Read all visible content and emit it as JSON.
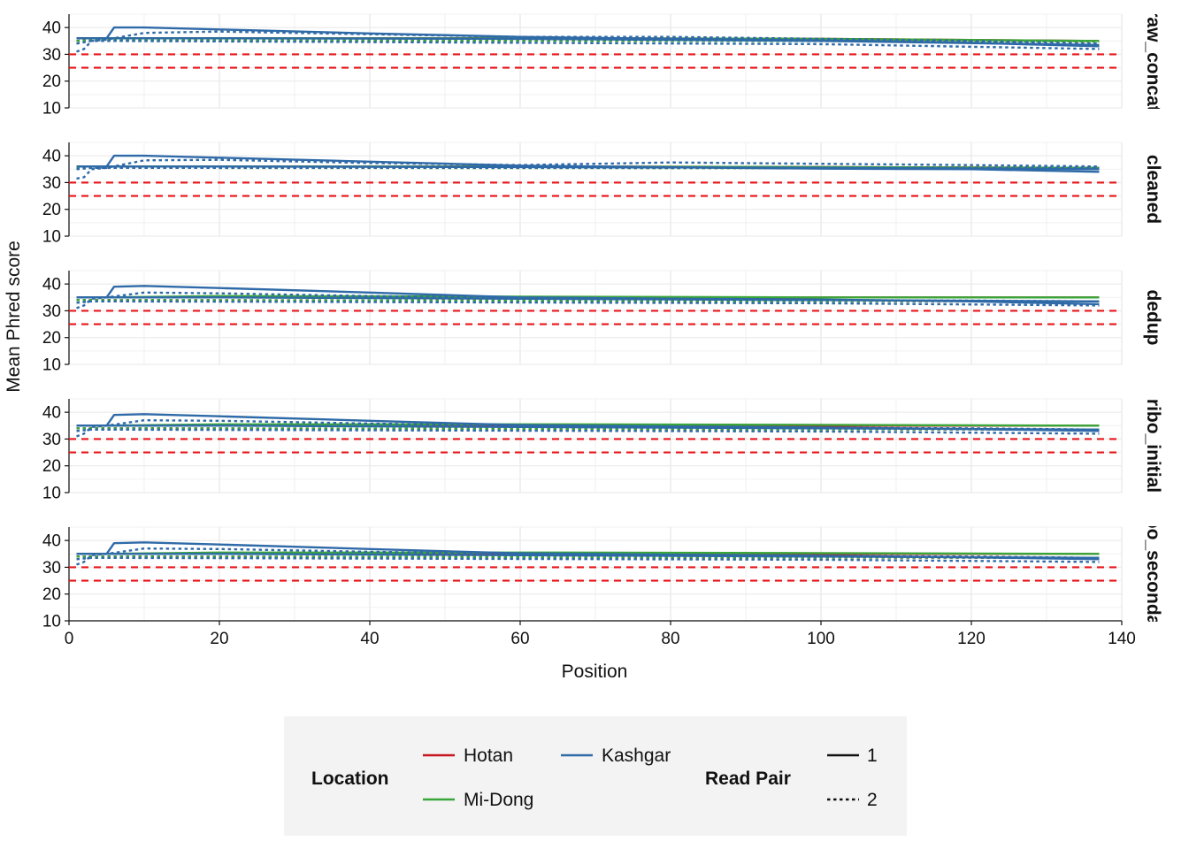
{
  "chart_data": {
    "type": "line",
    "xlabel": "Position",
    "ylabel": "Mean Phred score",
    "xlim": [
      0,
      140
    ],
    "ylim": [
      10,
      45
    ],
    "x_ticks": [
      0,
      20,
      40,
      60,
      80,
      100,
      120,
      140
    ],
    "y_ticks": [
      10,
      20,
      30,
      40
    ],
    "grid": true,
    "reference_lines": [
      {
        "y": 30,
        "color": "#e8161b",
        "style": "dashed"
      },
      {
        "y": 25,
        "color": "#e8161b",
        "style": "dashed"
      }
    ],
    "location_colors": {
      "Hotan": "#c8141e",
      "Mi-Dong": "#3aa639",
      "Kashgar": "#2f6aa8"
    },
    "panels": [
      {
        "label": "raw_concat",
        "series": [
          {
            "location": "Hotan",
            "read_pair": "1",
            "x": [
              1,
              5,
              20,
              60,
              100,
              137
            ],
            "y": [
              36,
              36,
              36,
              36,
              35.8,
              35
            ]
          },
          {
            "location": "Hotan",
            "read_pair": "2",
            "x": [
              1,
              3,
              6,
              137
            ],
            "y": [
              35,
              35.5,
              35.5,
              35
            ]
          },
          {
            "location": "Mi-Dong",
            "read_pair": "1",
            "x": [
              1,
              5,
              20,
              60,
              100,
              137
            ],
            "y": [
              36,
              36,
              36,
              36,
              35.8,
              35
            ]
          },
          {
            "location": "Mi-Dong",
            "read_pair": "2",
            "x": [
              1,
              3,
              6,
              137
            ],
            "y": [
              35,
              35.3,
              35.3,
              34.8
            ]
          },
          {
            "location": "Kashgar",
            "read_pair": "1",
            "x": [
              1,
              5,
              6,
              10,
              20,
              40,
              60,
              80,
              100,
              120,
              137
            ],
            "y": [
              36,
              36,
              40,
              40,
              39.3,
              37.8,
              36.5,
              35.8,
              35.2,
              34.3,
              33
            ]
          },
          {
            "location": "Kashgar",
            "read_pair": "2",
            "x": [
              1,
              2,
              3,
              5,
              10,
              20,
              40,
              60,
              80,
              100,
              120,
              137
            ],
            "y": [
              31,
              32,
              35,
              35.5,
              38,
              38.5,
              37.5,
              36.5,
              36.5,
              35.8,
              35,
              34
            ]
          },
          {
            "location": "Kashgar",
            "read_pair": "1",
            "x": [
              1,
              5,
              20,
              60,
              100,
              137
            ],
            "y": [
              36,
              36,
              36,
              35.8,
              35,
              33.5
            ]
          },
          {
            "location": "Kashgar",
            "read_pair": "2",
            "x": [
              1,
              3,
              6,
              100,
              137
            ],
            "y": [
              34,
              35,
              35,
              33.8,
              32
            ]
          }
        ]
      },
      {
        "label": "cleaned",
        "series": [
          {
            "location": "Hotan",
            "read_pair": "1",
            "x": [
              1,
              5,
              20,
              60,
              100,
              137
            ],
            "y": [
              36,
              36,
              36,
              36,
              35.8,
              35.5
            ]
          },
          {
            "location": "Hotan",
            "read_pair": "2",
            "x": [
              1,
              3,
              6,
              137
            ],
            "y": [
              35.5,
              35.5,
              35.5,
              35.5
            ]
          },
          {
            "location": "Mi-Dong",
            "read_pair": "1",
            "x": [
              1,
              5,
              20,
              60,
              100,
              137
            ],
            "y": [
              36,
              36,
              36,
              36,
              35.8,
              35.5
            ]
          },
          {
            "location": "Mi-Dong",
            "read_pair": "2",
            "x": [
              1,
              3,
              6,
              137
            ],
            "y": [
              35.5,
              35.5,
              35.5,
              35.3
            ]
          },
          {
            "location": "Kashgar",
            "read_pair": "1",
            "x": [
              1,
              5,
              6,
              10,
              20,
              40,
              60,
              80,
              100,
              120,
              137
            ],
            "y": [
              36,
              36,
              40,
              40,
              39.3,
              37.8,
              36.3,
              35.7,
              35.2,
              35,
              34
            ]
          },
          {
            "location": "Kashgar",
            "read_pair": "2",
            "x": [
              1,
              2,
              3,
              5,
              10,
              20,
              40,
              60,
              80,
              100,
              120,
              137
            ],
            "y": [
              31.5,
              32,
              35,
              35.5,
              38.3,
              38.5,
              37.3,
              36.5,
              37.5,
              37,
              36.5,
              36
            ]
          },
          {
            "location": "Kashgar",
            "read_pair": "1",
            "x": [
              1,
              5,
              20,
              60,
              100,
              137
            ],
            "y": [
              36,
              36,
              36,
              35.8,
              35.5,
              35
            ]
          },
          {
            "location": "Kashgar",
            "read_pair": "2",
            "x": [
              1,
              3,
              6,
              100,
              137
            ],
            "y": [
              35,
              35.5,
              35.5,
              35.5,
              35.5
            ]
          }
        ]
      },
      {
        "label": "dedup",
        "series": [
          {
            "location": "Hotan",
            "read_pair": "1",
            "x": [
              1,
              5,
              20,
              60,
              100,
              137
            ],
            "y": [
              35,
              35,
              35,
              35,
              35,
              35
            ]
          },
          {
            "location": "Hotan",
            "read_pair": "2",
            "x": [
              1,
              3,
              6,
              137
            ],
            "y": [
              34,
              34,
              34,
              33.5
            ]
          },
          {
            "location": "Mi-Dong",
            "read_pair": "1",
            "x": [
              1,
              5,
              20,
              60,
              100,
              137
            ],
            "y": [
              35,
              35,
              35.5,
              35.3,
              35,
              35
            ]
          },
          {
            "location": "Mi-Dong",
            "read_pair": "2",
            "x": [
              1,
              3,
              6,
              137
            ],
            "y": [
              34,
              34,
              34,
              33.5
            ]
          },
          {
            "location": "Kashgar",
            "read_pair": "1",
            "x": [
              1,
              5,
              6,
              10,
              20,
              40,
              60,
              80,
              100,
              120,
              137
            ],
            "y": [
              35,
              35,
              39,
              39.3,
              38.5,
              36.8,
              35,
              34.5,
              34.2,
              33.5,
              32.5
            ]
          },
          {
            "location": "Kashgar",
            "read_pair": "2",
            "x": [
              1,
              2,
              3,
              5,
              10,
              20,
              40,
              60,
              80,
              100,
              120,
              137
            ],
            "y": [
              31,
              32,
              34.5,
              35,
              36.8,
              36.5,
              35.5,
              34.8,
              34.3,
              34,
              33.8,
              33.5
            ]
          },
          {
            "location": "Kashgar",
            "read_pair": "1",
            "x": [
              1,
              5,
              20,
              60,
              100,
              137
            ],
            "y": [
              35,
              35,
              35,
              34.5,
              34,
              33.5
            ]
          },
          {
            "location": "Kashgar",
            "read_pair": "2",
            "x": [
              1,
              3,
              6,
              100,
              137
            ],
            "y": [
              33,
              33.5,
              33.5,
              32.8,
              32
            ]
          }
        ]
      },
      {
        "label": "ribo_initial",
        "series": [
          {
            "location": "Hotan",
            "read_pair": "1",
            "x": [
              1,
              5,
              20,
              60,
              100,
              137
            ],
            "y": [
              35,
              35,
              35,
              35,
              35,
              35
            ]
          },
          {
            "location": "Hotan",
            "read_pair": "2",
            "x": [
              1,
              3,
              6,
              137
            ],
            "y": [
              34,
              34,
              34,
              33.5
            ]
          },
          {
            "location": "Mi-Dong",
            "read_pair": "1",
            "x": [
              1,
              5,
              20,
              60,
              100,
              137
            ],
            "y": [
              35,
              35,
              35.5,
              35.5,
              35.3,
              35
            ]
          },
          {
            "location": "Mi-Dong",
            "read_pair": "2",
            "x": [
              1,
              3,
              6,
              137
            ],
            "y": [
              34,
              34,
              34,
              33.5
            ]
          },
          {
            "location": "Kashgar",
            "read_pair": "1",
            "x": [
              1,
              5,
              6,
              10,
              20,
              40,
              60,
              80,
              100,
              120,
              137
            ],
            "y": [
              35,
              35,
              39,
              39.3,
              38.5,
              36.8,
              35.2,
              34.7,
              34.3,
              33.7,
              33
            ]
          },
          {
            "location": "Kashgar",
            "read_pair": "2",
            "x": [
              1,
              2,
              3,
              5,
              10,
              20,
              40,
              60,
              80,
              100,
              120,
              137
            ],
            "y": [
              31,
              32,
              34.5,
              35,
              37,
              36.8,
              35.8,
              35,
              34.5,
              34.2,
              34,
              33.5
            ]
          },
          {
            "location": "Kashgar",
            "read_pair": "1",
            "x": [
              1,
              5,
              20,
              60,
              100,
              137
            ],
            "y": [
              35,
              35,
              35,
              34.5,
              34,
              33.5
            ]
          },
          {
            "location": "Kashgar",
            "read_pair": "2",
            "x": [
              1,
              3,
              6,
              100,
              137
            ],
            "y": [
              33,
              33.5,
              33.5,
              32.8,
              32
            ]
          }
        ]
      },
      {
        "label": "ribo_secondary",
        "series": [
          {
            "location": "Hotan",
            "read_pair": "1",
            "x": [
              1,
              5,
              20,
              60,
              100,
              137
            ],
            "y": [
              35,
              35,
              35,
              35,
              35,
              35
            ]
          },
          {
            "location": "Hotan",
            "read_pair": "2",
            "x": [
              1,
              3,
              6,
              137
            ],
            "y": [
              34,
              34,
              34,
              33.5
            ]
          },
          {
            "location": "Mi-Dong",
            "read_pair": "1",
            "x": [
              1,
              5,
              20,
              60,
              100,
              137
            ],
            "y": [
              35,
              35,
              35.5,
              35.5,
              35.3,
              35
            ]
          },
          {
            "location": "Mi-Dong",
            "read_pair": "2",
            "x": [
              1,
              3,
              6,
              137
            ],
            "y": [
              34,
              34,
              34,
              33.5
            ]
          },
          {
            "location": "Kashgar",
            "read_pair": "1",
            "x": [
              1,
              5,
              6,
              10,
              20,
              40,
              60,
              80,
              100,
              120,
              137
            ],
            "y": [
              35,
              35,
              39,
              39.3,
              38.5,
              36.8,
              35.2,
              34.7,
              34.3,
              33.7,
              33
            ]
          },
          {
            "location": "Kashgar",
            "read_pair": "2",
            "x": [
              1,
              2,
              3,
              5,
              10,
              20,
              40,
              60,
              80,
              100,
              120,
              137
            ],
            "y": [
              31,
              32,
              34.5,
              35,
              37,
              36.8,
              35.8,
              35,
              34.5,
              34.2,
              34,
              33.5
            ]
          },
          {
            "location": "Kashgar",
            "read_pair": "1",
            "x": [
              1,
              5,
              20,
              60,
              100,
              137
            ],
            "y": [
              35,
              35,
              35,
              34.5,
              34,
              33.5
            ]
          },
          {
            "location": "Kashgar",
            "read_pair": "2",
            "x": [
              1,
              3,
              6,
              100,
              137
            ],
            "y": [
              33,
              33.5,
              33.5,
              32.8,
              32
            ]
          }
        ]
      }
    ],
    "legend": {
      "placement": "bottom",
      "location_title": "Location",
      "locations": [
        "Hotan",
        "Kashgar",
        "Mi-Dong"
      ],
      "read_pair_title": "Read Pair",
      "read_pairs": [
        {
          "label": "1",
          "style": "solid"
        },
        {
          "label": "2",
          "style": "dotted"
        }
      ]
    }
  }
}
